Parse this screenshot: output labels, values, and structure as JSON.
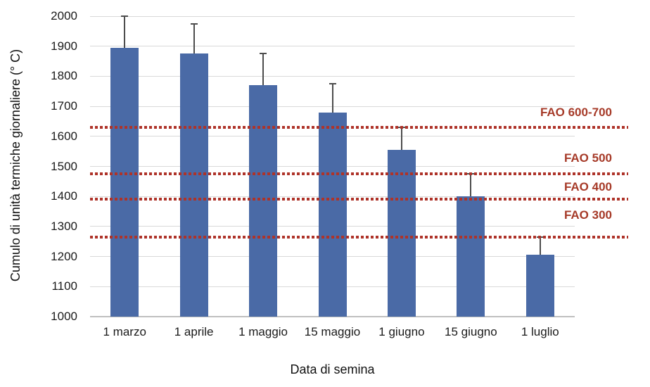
{
  "chart_data": {
    "type": "bar",
    "title": "",
    "xlabel": "Data di semina",
    "ylabel": "Cumulo di unità termiche giornaliere (° C)",
    "categories": [
      "1 marzo",
      "1 aprile",
      "1 maggio",
      "15 maggio",
      "1 giugno",
      "15 giugno",
      "1 luglio"
    ],
    "values": [
      1895,
      1875,
      1770,
      1680,
      1555,
      1400,
      1205
    ],
    "error_plus": [
      105,
      100,
      105,
      95,
      75,
      75,
      60
    ],
    "ylim": [
      1000,
      2000
    ],
    "ytick_step": 100,
    "grid": true,
    "legend": false,
    "reference_lines": [
      {
        "label": "FAO 600-700",
        "value": 1630,
        "label_dy": -21
      },
      {
        "label": "FAO 500",
        "value": 1475,
        "label_dy": -22
      },
      {
        "label": "FAO 400",
        "value": 1390,
        "label_dy": -17
      },
      {
        "label": "FAO 300",
        "value": 1265,
        "label_dy": -31
      }
    ],
    "colors": {
      "bar": "#4a6aa6",
      "error_bar": "#4d4d4d",
      "gridline": "#d9d9d9",
      "axis_line": "#bfbfbf",
      "reference_line": "#ae3329",
      "reference_label": "#a63a28",
      "tick_text": "#1a1a1a"
    }
  }
}
